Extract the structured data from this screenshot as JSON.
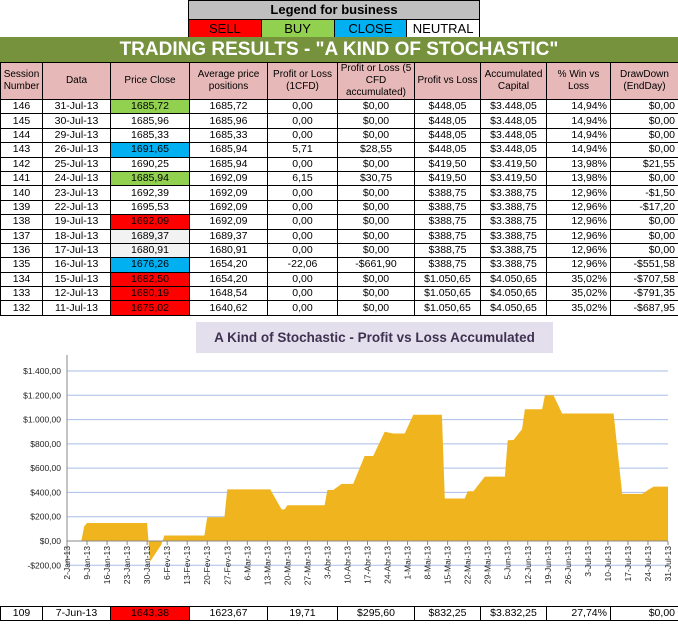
{
  "legend": {
    "title": "Legend for business",
    "items": [
      {
        "label": "SELL",
        "color": "#ff0000"
      },
      {
        "label": "BUY",
        "color": "#92d050"
      },
      {
        "label": "CLOSE",
        "color": "#00b0f0"
      },
      {
        "label": "NEUTRAL",
        "color": "#ffffff"
      }
    ]
  },
  "title": "TRADING RESULTS - \"A KIND OF STOCHASTIC\"",
  "columns": [
    "Session Number",
    "Data",
    "Price Close",
    "Average price positions",
    "Profit or Loss (1CFD)",
    "Profit or Loss (5 CFD accumulated)",
    "Profit vs Loss",
    "Accumulated Capital",
    "% Win vs Loss",
    "DrawDown (EndDay)"
  ],
  "signal_colors": {
    "buy": "#92d050",
    "sell": "#ff0000",
    "close": "#00b0f0",
    "neutral": "#ffffff",
    "gray": "#f2f2f2"
  },
  "rows": [
    [
      "146",
      "31-Jul-13",
      "1685,72",
      "1685,72",
      "0,00",
      "$0,00",
      "$448,05",
      "$3.448,05",
      "14,94%",
      "$0,00",
      "buy"
    ],
    [
      "145",
      "30-Jul-13",
      "1685,96",
      "1685,96",
      "0,00",
      "$0,00",
      "$448,05",
      "$3.448,05",
      "14,94%",
      "$0,00",
      "neutral"
    ],
    [
      "144",
      "29-Jul-13",
      "1685,33",
      "1685,33",
      "0,00",
      "$0,00",
      "$448,05",
      "$3.448,05",
      "14,94%",
      "$0,00",
      "neutral"
    ],
    [
      "143",
      "26-Jul-13",
      "1691,65",
      "1685,94",
      "5,71",
      "$28,55",
      "$448,05",
      "$3.448,05",
      "14,94%",
      "$0,00",
      "close"
    ],
    [
      "142",
      "25-Jul-13",
      "1690,25",
      "1685,94",
      "0,00",
      "$0,00",
      "$419,50",
      "$3.419,50",
      "13,98%",
      "$21,55",
      "neutral"
    ],
    [
      "141",
      "24-Jul-13",
      "1685,94",
      "1692,09",
      "6,15",
      "$30,75",
      "$419,50",
      "$3.419,50",
      "13,98%",
      "$0,00",
      "buy"
    ],
    [
      "140",
      "23-Jul-13",
      "1692,39",
      "1692,09",
      "0,00",
      "$0,00",
      "$388,75",
      "$3.388,75",
      "12,96%",
      "-$1,50",
      "neutral"
    ],
    [
      "139",
      "22-Jul-13",
      "1695,53",
      "1692,09",
      "0,00",
      "$0,00",
      "$388,75",
      "$3.388,75",
      "12,96%",
      "-$17,20",
      "neutral"
    ],
    [
      "138",
      "19-Jul-13",
      "1692,09",
      "1692,09",
      "0,00",
      "$0,00",
      "$388,75",
      "$3.388,75",
      "12,96%",
      "$0,00",
      "sell"
    ],
    [
      "137",
      "18-Jul-13",
      "1689,37",
      "1689,37",
      "0,00",
      "$0,00",
      "$388,75",
      "$3.388,75",
      "12,96%",
      "$0,00",
      "gray"
    ],
    [
      "136",
      "17-Jul-13",
      "1680,91",
      "1680,91",
      "0,00",
      "$0,00",
      "$388,75",
      "$3.388,75",
      "12,96%",
      "$0,00",
      "gray"
    ],
    [
      "135",
      "16-Jul-13",
      "1676,26",
      "1654,20",
      "-22,06",
      "-$661,90",
      "$388,75",
      "$3.388,75",
      "12,96%",
      "-$551,58",
      "close"
    ],
    [
      "134",
      "15-Jul-13",
      "1682,50",
      "1654,20",
      "0,00",
      "$0,00",
      "$1.050,65",
      "$4.050,65",
      "35,02%",
      "-$707,58",
      "sell"
    ],
    [
      "133",
      "12-Jul-13",
      "1680,19",
      "1648,54",
      "0,00",
      "$0,00",
      "$1.050,65",
      "$4.050,65",
      "35,02%",
      "-$791,35",
      "sell"
    ],
    [
      "132",
      "11-Jul-13",
      "1675,02",
      "1640,62",
      "0,00",
      "$0,00",
      "$1.050,65",
      "$4.050,65",
      "35,02%",
      "-$687,95",
      "sell"
    ]
  ],
  "bottom_rows": [
    [
      "109",
      "7-Jun-13",
      "1643,38",
      "1623,67",
      "19,71",
      "$295,60",
      "$832,25",
      "$3.832,25",
      "27,74%",
      "$0,00",
      "sell"
    ]
  ],
  "chart_data": {
    "type": "area",
    "title": "A Kind of Stochastic - Profit vs Loss Accumulated",
    "color": "#f0b41e",
    "grid": true,
    "ylim": [
      -200,
      1400
    ],
    "yticks": [
      "$1.400,00",
      "$1.200,00",
      "$1.000,00",
      "$800,00",
      "$600,00",
      "$400,00",
      "$200,00",
      "$0,00",
      "-$200,00"
    ],
    "ytick_values": [
      1400,
      1200,
      1000,
      800,
      600,
      400,
      200,
      0,
      -200
    ],
    "xlim": [
      "2013-01-02",
      "2013-07-31"
    ],
    "xticks": [
      "2-Jan-13",
      "9-Jan-13",
      "16-Jan-13",
      "23-Jan-13",
      "30-Jan-13",
      "6-Fev-13",
      "13-Fev-13",
      "20-Fev-13",
      "27-Fev-13",
      "6-Mar-13",
      "13-Mar-13",
      "20-Mar-13",
      "27-Mar-13",
      "3-Abr-13",
      "10-Abr-13",
      "17-Abr-13",
      "24-Abr-13",
      "1-Mai-13",
      "8-Mai-13",
      "15-Mai-13",
      "22-Mai-13",
      "29-Mai-13",
      "5-Jun-13",
      "12-Jun-13",
      "19-Jun-13",
      "26-Jun-13",
      "3-Jul-13",
      "10-Jul-13",
      "17-Jul-13",
      "24-Jul-13",
      "31-Jul-13"
    ],
    "points": [
      [
        "2013-01-02",
        0
      ],
      [
        "2013-01-07",
        0
      ],
      [
        "2013-01-08",
        120
      ],
      [
        "2013-01-09",
        148
      ],
      [
        "2013-01-30",
        148
      ],
      [
        "2013-01-31",
        -170
      ],
      [
        "2013-02-04",
        -30
      ],
      [
        "2013-02-05",
        45
      ],
      [
        "2013-02-19",
        45
      ],
      [
        "2013-02-20",
        195
      ],
      [
        "2013-02-26",
        195
      ],
      [
        "2013-02-27",
        425
      ],
      [
        "2013-03-14",
        425
      ],
      [
        "2013-03-18",
        260
      ],
      [
        "2013-03-19",
        260
      ],
      [
        "2013-03-20",
        295
      ],
      [
        "2013-04-02",
        295
      ],
      [
        "2013-04-03",
        420
      ],
      [
        "2013-04-05",
        420
      ],
      [
        "2013-04-08",
        470
      ],
      [
        "2013-04-12",
        470
      ],
      [
        "2013-04-16",
        700
      ],
      [
        "2013-04-19",
        700
      ],
      [
        "2013-04-23",
        900
      ],
      [
        "2013-04-26",
        885
      ],
      [
        "2013-04-30",
        885
      ],
      [
        "2013-05-03",
        1040
      ],
      [
        "2013-05-13",
        1040
      ],
      [
        "2013-05-14",
        350
      ],
      [
        "2013-05-21",
        350
      ],
      [
        "2013-05-22",
        410
      ],
      [
        "2013-05-24",
        410
      ],
      [
        "2013-05-28",
        530
      ],
      [
        "2013-06-04",
        530
      ],
      [
        "2013-06-05",
        830
      ],
      [
        "2013-06-07",
        832
      ],
      [
        "2013-06-10",
        920
      ],
      [
        "2013-06-11",
        1085
      ],
      [
        "2013-06-17",
        1085
      ],
      [
        "2013-06-18",
        1200
      ],
      [
        "2013-06-21",
        1200
      ],
      [
        "2013-06-24",
        1050
      ],
      [
        "2013-07-12",
        1050
      ],
      [
        "2013-07-15",
        388
      ],
      [
        "2013-07-22",
        388
      ],
      [
        "2013-07-24",
        420
      ],
      [
        "2013-07-26",
        448
      ],
      [
        "2013-07-31",
        448
      ]
    ]
  }
}
